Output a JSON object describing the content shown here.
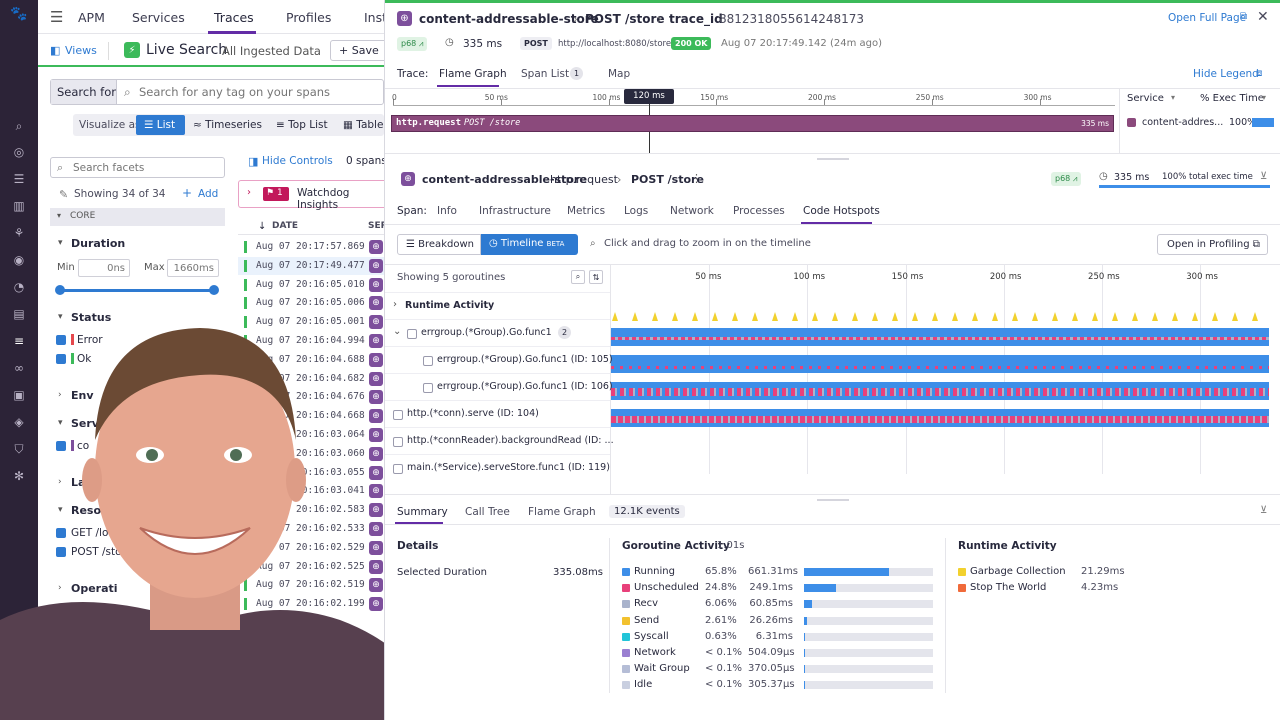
{
  "left_nav": {
    "icons": [
      "dog-logo-icon",
      "search-icon",
      "binoculars-icon",
      "list-icon",
      "bar-chart-icon",
      "nodes-icon",
      "target-icon",
      "gauge-icon",
      "stack-icon",
      "traces-icon",
      "link-icon",
      "book-icon",
      "shield-check-icon",
      "shield-icon",
      "gear-icon",
      "chat-icon"
    ]
  },
  "top_nav": {
    "items": [
      "APM",
      "Services",
      "Traces",
      "Profiles",
      "Inst"
    ],
    "active": "Traces"
  },
  "toolbar": {
    "views": "Views",
    "live_search": "Live Search",
    "ingested": "All Ingested Data",
    "save": "Save"
  },
  "search": {
    "label": "Search for",
    "placeholder": "Search for any tag on your spans"
  },
  "visualize": {
    "label": "Visualize as",
    "options": [
      "List",
      "Timeseries",
      "Top List",
      "Table"
    ],
    "active": "List"
  },
  "facets": {
    "search_placeholder": "Search facets",
    "showing": "Showing 34 of 34",
    "add": "Add",
    "core": "CORE",
    "duration": {
      "title": "Duration",
      "min_label": "Min",
      "min_value": "0ns",
      "max_label": "Max",
      "max_value": "1660ms"
    },
    "status": {
      "title": "Status",
      "items": [
        "Error",
        "Ok"
      ]
    },
    "env": "Env",
    "service": {
      "title": "Servi",
      "item": "co"
    },
    "language": "Lang",
    "resource": {
      "title": "Resour",
      "items": [
        "GET /load",
        "POST /stor"
      ]
    },
    "operation": "Operati"
  },
  "list": {
    "hide_controls": "Hide Controls",
    "spans": "0 spans/",
    "watchdog": {
      "count": "1",
      "label": "Watchdog Insights"
    },
    "date_header": "DATE",
    "serv_header": "SER",
    "rows": [
      "Aug 07 20:17:57.869",
      "Aug 07 20:17:49.477",
      "Aug 07 20:16:05.010",
      "Aug 07 20:16:05.006",
      "Aug 07 20:16:05.001",
      "Aug 07 20:16:04.994",
      "Aug 07 20:16:04.688",
      "Aug 07 20:16:04.682",
      "Aug 07 20:16:04.676",
      "Aug 07 20:16:04.668",
      "Aug 07 20:16:03.064",
      "Aug 07 20:16:03.060",
      "Aug 07 20:16:03.055",
      "Aug 07 20:16:03.041",
      "Aug 07 20:16:02.583",
      "Aug 07 20:16:02.533",
      "Aug 07 20:16:02.529",
      "Aug 07 20:16:02.525",
      "Aug 07 20:16:02.519",
      "Aug 07 20:16:02.199"
    ]
  },
  "trace": {
    "service": "content-addressable-store",
    "resource": "POST /store",
    "trace_id_label": "trace_id",
    "trace_id": "8812318055614248173",
    "open_full_page": "Open Full Page",
    "percentile": "p68",
    "duration": "335 ms",
    "method": "POST",
    "url": "http://localhost:8080/store",
    "status": "200 OK",
    "timestamp": "Aug 07 20:17:49.142 (24m ago)",
    "trace_label": "Trace:",
    "tabs": [
      "Flame Graph",
      "Span List",
      "Map"
    ],
    "span_list_count": "1",
    "hide_legend": "Hide Legend",
    "ruler": [
      "0",
      "50 ms",
      "100 ms",
      "150 ms",
      "200 ms",
      "250 ms",
      "300 ms"
    ],
    "cursor": "120 ms",
    "flame_bar": {
      "name": "http.request",
      "resource": "POST /store",
      "duration": "335 ms"
    },
    "legend": {
      "service_header": "Service",
      "exec_header": "% Exec Time",
      "service": "content-addres...",
      "exec": "100%"
    }
  },
  "span": {
    "service": "content-addressable-store",
    "operation": "http.request",
    "resource": "POST /store",
    "percentile": "p68",
    "duration": "335 ms",
    "exec": "100% total exec time",
    "label": "Span:",
    "tabs": [
      "Info",
      "Infrastructure",
      "Metrics",
      "Logs",
      "Network",
      "Processes",
      "Code Hotspots"
    ],
    "active_tab": "Code Hotspots",
    "breakdown": "Breakdown",
    "timeline": "Timeline",
    "beta": "BETA",
    "zoom_hint": "Click and drag to zoom in on the timeline",
    "open_profiling": "Open in Profiling"
  },
  "goroutines": {
    "showing": "Showing 5 goroutines",
    "ticks": [
      "50 ms",
      "100 ms",
      "150 ms",
      "200 ms",
      "250 ms",
      "300 ms"
    ],
    "rows": [
      {
        "label": "Runtime Activity"
      },
      {
        "label": "errgroup.(*Group).Go.func1",
        "count": "2"
      },
      {
        "label": "errgroup.(*Group).Go.func1 (ID: 105)"
      },
      {
        "label": "errgroup.(*Group).Go.func1 (ID: 106)"
      },
      {
        "label": "http.(*conn).serve (ID: 104)"
      },
      {
        "label": "http.(*connReader).backgroundRead (ID: ..."
      },
      {
        "label": "main.(*Service).serveStore.func1 (ID: 119)"
      }
    ]
  },
  "summary": {
    "tabs": [
      "Summary",
      "Call Tree",
      "Flame Graph"
    ],
    "events": "12.1K events",
    "details": {
      "title": "Details",
      "label": "Selected Duration",
      "value": "335.08ms"
    },
    "goroutine_activity": {
      "title": "Goroutine Activity",
      "total": "1.01s",
      "items": [
        {
          "name": "Running",
          "pct": "65.8%",
          "time": "661.31ms",
          "frac": 0.658,
          "color": "#3d8ee8"
        },
        {
          "name": "Unscheduled",
          "pct": "24.8%",
          "time": "249.1ms",
          "frac": 0.248,
          "color": "#e8407a"
        },
        {
          "name": "Recv",
          "pct": "6.06%",
          "time": "60.85ms",
          "frac": 0.0606,
          "color": "#a9b3cc"
        },
        {
          "name": "Send",
          "pct": "2.61%",
          "time": "26.26ms",
          "frac": 0.0261,
          "color": "#f2c12e"
        },
        {
          "name": "Syscall",
          "pct": "0.63%",
          "time": "6.31ms",
          "frac": 0.0063,
          "color": "#22c4d8"
        },
        {
          "name": "Network",
          "pct": "< 0.1%",
          "time": "504.09μs",
          "frac": 0.0005,
          "color": "#9a7fd1"
        },
        {
          "name": "Wait Group",
          "pct": "< 0.1%",
          "time": "370.05μs",
          "frac": 0.0004,
          "color": "#b5bdd6"
        },
        {
          "name": "Idle",
          "pct": "< 0.1%",
          "time": "305.37μs",
          "frac": 0.0003,
          "color": "#c9cfe0"
        }
      ]
    },
    "runtime_activity": {
      "title": "Runtime Activity",
      "items": [
        {
          "name": "Garbage Collection",
          "time": "21.29ms",
          "color": "#f2d12e"
        },
        {
          "name": "Stop The World",
          "time": "4.23ms",
          "color": "#f06a3a"
        }
      ]
    }
  }
}
